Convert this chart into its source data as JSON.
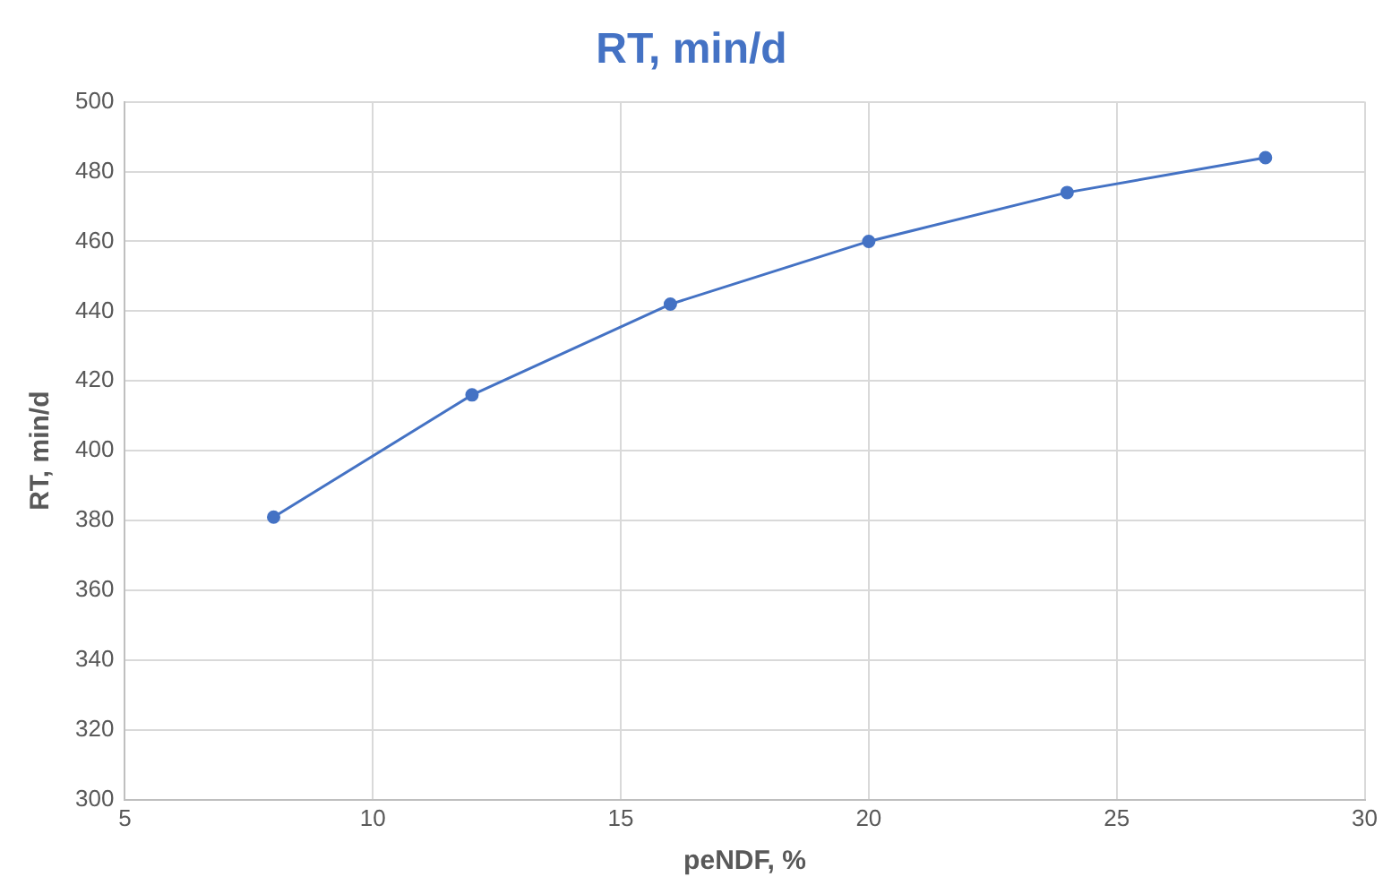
{
  "chart_data": {
    "type": "line",
    "title": "RT, min/d",
    "xlabel": "peNDF, %",
    "ylabel": "RT, min/d",
    "x": [
      8,
      12,
      16,
      20,
      24,
      28
    ],
    "series": [
      {
        "color": "#4472c4",
        "values": [
          381,
          416,
          442,
          460,
          474,
          484
        ]
      }
    ],
    "xlim": [
      5,
      30
    ],
    "xticks": [
      5,
      10,
      15,
      20,
      25,
      30
    ],
    "ylim": [
      300,
      500
    ],
    "yticks": [
      300,
      320,
      340,
      360,
      380,
      400,
      420,
      440,
      460,
      480,
      500
    ],
    "grid": true,
    "marker": "circle",
    "line_style": "solid"
  }
}
